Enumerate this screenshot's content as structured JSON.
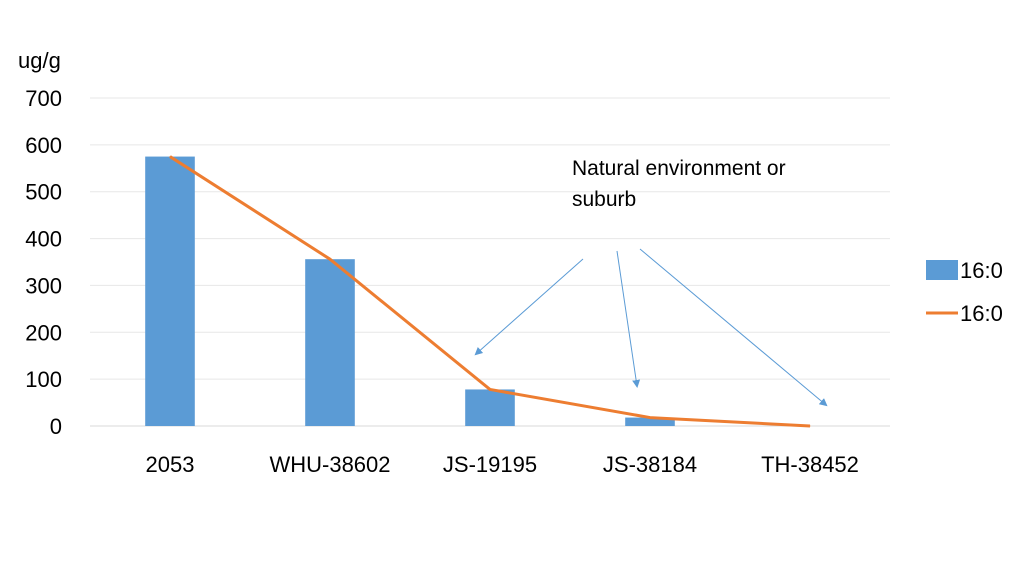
{
  "chart_data": {
    "type": "bar",
    "categories": [
      "2053",
      "WHU-38602",
      "JS-19195",
      "JS-38184",
      "TH-38452"
    ],
    "series": [
      {
        "name": "16:0",
        "kind": "bar",
        "values": [
          575,
          356,
          78,
          18,
          0
        ],
        "color": "#5b9bd5"
      },
      {
        "name": "16:0",
        "kind": "line",
        "values": [
          575,
          356,
          78,
          18,
          0
        ],
        "color": "#ed7d31"
      }
    ],
    "ylabel": "ug/g",
    "ylim": [
      0,
      700
    ],
    "yticks": [
      0,
      100,
      200,
      300,
      400,
      500,
      600,
      700
    ],
    "grid": true,
    "legend_position": "right",
    "annotation": {
      "lines": [
        "Natural environment or",
        "suburb"
      ],
      "arrow_targets": [
        "JS-19195",
        "JS-38184",
        "TH-38452"
      ],
      "arrow_color": "#5b9bd5"
    }
  }
}
